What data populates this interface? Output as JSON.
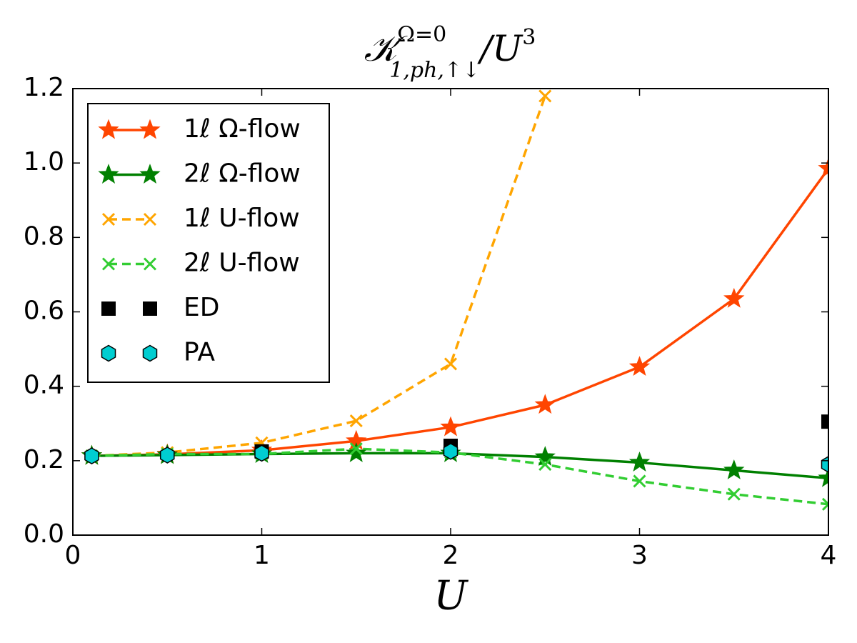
{
  "chart_data": {
    "type": "line",
    "title": {
      "base": "𝒦",
      "sup": "Ω=0",
      "sub": "1,ph,↑↓",
      "rest": "/U",
      "power": "3"
    },
    "xlabel": "U",
    "xlim": [
      0,
      4
    ],
    "xticks": [
      0,
      1,
      2,
      3,
      4
    ],
    "ylim": [
      0,
      1.2
    ],
    "yticks": [
      {
        "value": 0,
        "label": "0.0"
      },
      0.2,
      0.4,
      0.6,
      0.8,
      {
        "value": 1,
        "label": "1.0"
      },
      1.2
    ],
    "legend": "upper left",
    "series": [
      {
        "name": "1ℓ Ω-flow",
        "color": "#ff4500",
        "marker": "star",
        "linestyle": "solid",
        "x": [
          0.1,
          0.5,
          1,
          1.5,
          2,
          2.5,
          3,
          3.5,
          4
        ],
        "values": [
          0.213,
          0.217,
          0.228,
          0.253,
          0.29,
          0.35,
          0.452,
          0.635,
          0.985
        ]
      },
      {
        "name": "2ℓ Ω-flow",
        "color": "#008000",
        "marker": "star",
        "linestyle": "solid",
        "x": [
          0.1,
          0.5,
          1,
          1.5,
          2,
          2.5,
          3,
          3.5,
          4
        ],
        "values": [
          0.213,
          0.215,
          0.218,
          0.22,
          0.22,
          0.21,
          0.195,
          0.174,
          0.153
        ]
      },
      {
        "name": "1ℓ U-flow",
        "color": "#ffa500",
        "marker": "x",
        "linestyle": "dashed",
        "x": [
          0.1,
          0.5,
          1,
          1.5,
          2,
          2.5
        ],
        "values": [
          0.213,
          0.222,
          0.248,
          0.307,
          0.46,
          1.18
        ]
      },
      {
        "name": "2ℓ U-flow",
        "color": "#32cd32",
        "marker": "x",
        "linestyle": "dashed",
        "x": [
          0.1,
          0.5,
          1,
          1.5,
          2,
          2.5,
          3,
          3.5,
          4
        ],
        "values": [
          0.213,
          0.218,
          0.218,
          0.232,
          0.222,
          0.19,
          0.145,
          0.11,
          0.083
        ]
      },
      {
        "name": "ED",
        "color": "#000000",
        "marker": "square",
        "linestyle": "none",
        "x": [
          1,
          2,
          4
        ],
        "values": [
          0.225,
          0.24,
          0.305
        ]
      },
      {
        "name": "PA",
        "color": "#00ced1",
        "marker": "hexagon",
        "linestyle": "none",
        "x": [
          0.1,
          0.5,
          1,
          2,
          4
        ],
        "values": [
          0.213,
          0.215,
          0.22,
          0.225,
          0.19
        ]
      }
    ]
  }
}
